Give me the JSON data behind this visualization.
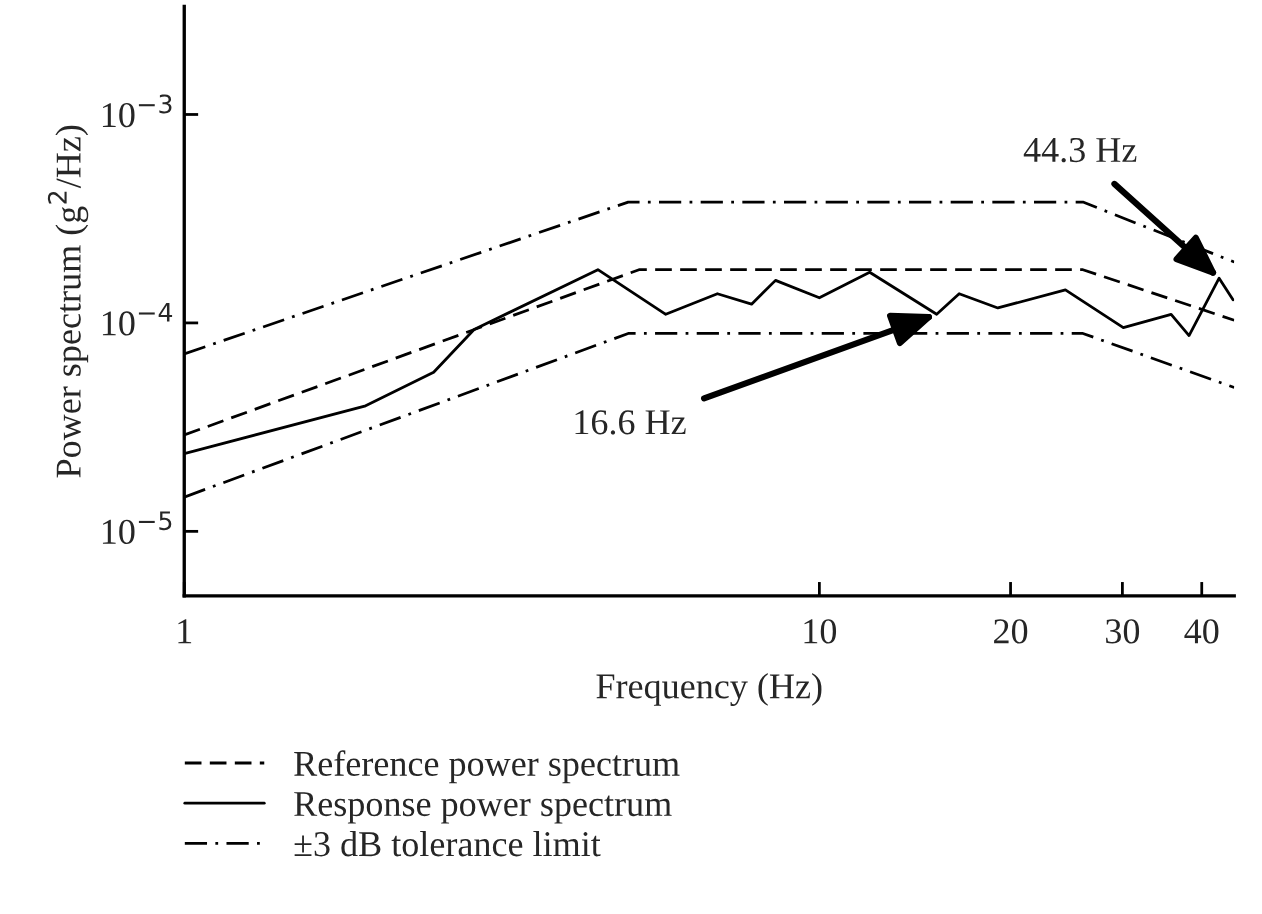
{
  "chart_data": {
    "type": "line",
    "xlabel": "Frequency (Hz)",
    "ylabel": "Power spectrum (g$^{2}$/Hz)",
    "log": "xy",
    "grid": false,
    "legend": "bottom",
    "xlim": [
      1,
      45
    ],
    "xticks": [
      1,
      10,
      20,
      30,
      40
    ],
    "ylim": [
      4.9e-06,
      0.0033
    ],
    "yticks": [
      {
        "value": 1e-05,
        "label": "10$^{−5}$"
      },
      {
        "value": 0.0001,
        "label": "10$^{−4}$"
      },
      {
        "value": 0.001,
        "label": "10$^{−3}$"
      }
    ],
    "series": [
      {
        "name": "Reference power spectrum",
        "color": "#000000",
        "line_style": "dashed",
        "x": [
          1,
          5.2,
          26,
          45
        ],
        "values": [
          2.9e-05,
          0.00018,
          0.00018,
          0.000103
        ]
      },
      {
        "name": "Response power spectrum",
        "color": "#000000",
        "line_style": "solid",
        "x": [
          1,
          1.93,
          2.47,
          2.86,
          4.48,
          5.73,
          6.91,
          7.82,
          8.53,
          10,
          12.0,
          15.3,
          16.6,
          19.1,
          24.4,
          30.1,
          35.8,
          38.2,
          42.6,
          44.8
        ],
        "values": [
          2.36e-05,
          4e-05,
          5.8e-05,
          9.3e-05,
          0.00018,
          0.00011,
          0.000138,
          0.000123,
          0.00016,
          0.000132,
          0.000175,
          0.00011,
          0.000138,
          0.000118,
          0.000144,
          9.5e-05,
          0.00011,
          8.7e-05,
          0.000164,
          0.000129
        ]
      },
      {
        "name": "±3 dB tolerance limit",
        "color": "#000000",
        "line_style": "dashdot",
        "x": [
          1,
          5,
          26,
          45
        ],
        "values": [
          7.1e-05,
          0.00038,
          0.00038,
          0.000196
        ]
      },
      {
        "color": "#000000",
        "line_style": "dashdot",
        "x": [
          1,
          5,
          26,
          45
        ],
        "values": [
          1.46e-05,
          8.9e-05,
          8.9e-05,
          4.9e-05
        ]
      }
    ],
    "annotations": [
      {
        "text": "16.6 Hz",
        "x": 15.3,
        "y": 0.00011
      },
      {
        "text": "44.3 Hz",
        "x": 42.6,
        "y": 0.000164
      }
    ]
  }
}
